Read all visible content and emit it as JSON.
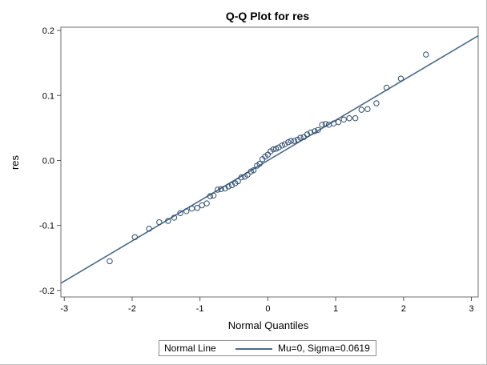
{
  "colors": {
    "line": "#4a6b8a",
    "marker": "#2f4d6f",
    "axis": "#555555",
    "text": "#000000",
    "background": "#ffffff"
  },
  "chart_data": {
    "type": "scatter",
    "title": "Q-Q Plot for res",
    "xlabel": "Normal Quantiles",
    "ylabel": "res",
    "xlim": [
      -3.05,
      3.1
    ],
    "ylim": [
      -0.21,
      0.205
    ],
    "xticks": [
      -3,
      -2,
      -1,
      0,
      1,
      2,
      3
    ],
    "yticks": [
      -0.2,
      -0.1,
      0.0,
      0.1,
      0.2
    ],
    "xtick_labels": [
      "-3",
      "-2",
      "-1",
      "0",
      "1",
      "2",
      "3"
    ],
    "ytick_labels": [
      "-0.2",
      "-0.1",
      "0.0",
      "0.1",
      "0.2"
    ],
    "grid": false,
    "legend_position": "bottom",
    "reference_line": {
      "mu": 0,
      "sigma": 0.0619
    },
    "legend": {
      "title": "Normal Line",
      "entry": "Mu=0, Sigma=0.0619"
    },
    "points": [
      {
        "x": -2.33,
        "y": -0.155
      },
      {
        "x": -1.96,
        "y": -0.118
      },
      {
        "x": -1.75,
        "y": -0.105
      },
      {
        "x": -1.6,
        "y": -0.095
      },
      {
        "x": -1.47,
        "y": -0.093
      },
      {
        "x": -1.38,
        "y": -0.088
      },
      {
        "x": -1.29,
        "y": -0.081
      },
      {
        "x": -1.2,
        "y": -0.078
      },
      {
        "x": -1.12,
        "y": -0.074
      },
      {
        "x": -1.04,
        "y": -0.073
      },
      {
        "x": -0.97,
        "y": -0.069
      },
      {
        "x": -0.9,
        "y": -0.066
      },
      {
        "x": -0.85,
        "y": -0.055
      },
      {
        "x": -0.8,
        "y": -0.054
      },
      {
        "x": -0.74,
        "y": -0.045
      },
      {
        "x": -0.69,
        "y": -0.044
      },
      {
        "x": -0.63,
        "y": -0.043
      },
      {
        "x": -0.58,
        "y": -0.04
      },
      {
        "x": -0.53,
        "y": -0.038
      },
      {
        "x": -0.48,
        "y": -0.035
      },
      {
        "x": -0.44,
        "y": -0.032
      },
      {
        "x": -0.39,
        "y": -0.026
      },
      {
        "x": -0.34,
        "y": -0.025
      },
      {
        "x": -0.3,
        "y": -0.022
      },
      {
        "x": -0.25,
        "y": -0.017
      },
      {
        "x": -0.21,
        "y": -0.015
      },
      {
        "x": -0.16,
        "y": -0.008
      },
      {
        "x": -0.12,
        "y": -0.005
      },
      {
        "x": -0.08,
        "y": 0.002
      },
      {
        "x": -0.04,
        "y": 0.006
      },
      {
        "x": 0.0,
        "y": 0.009
      },
      {
        "x": 0.04,
        "y": 0.014
      },
      {
        "x": 0.08,
        "y": 0.017
      },
      {
        "x": 0.12,
        "y": 0.018
      },
      {
        "x": 0.16,
        "y": 0.02
      },
      {
        "x": 0.21,
        "y": 0.023
      },
      {
        "x": 0.25,
        "y": 0.025
      },
      {
        "x": 0.3,
        "y": 0.028
      },
      {
        "x": 0.34,
        "y": 0.03
      },
      {
        "x": 0.39,
        "y": 0.03
      },
      {
        "x": 0.44,
        "y": 0.032
      },
      {
        "x": 0.48,
        "y": 0.035
      },
      {
        "x": 0.53,
        "y": 0.036
      },
      {
        "x": 0.58,
        "y": 0.04
      },
      {
        "x": 0.63,
        "y": 0.043
      },
      {
        "x": 0.69,
        "y": 0.045
      },
      {
        "x": 0.74,
        "y": 0.047
      },
      {
        "x": 0.8,
        "y": 0.055
      },
      {
        "x": 0.85,
        "y": 0.056
      },
      {
        "x": 0.9,
        "y": 0.055
      },
      {
        "x": 0.97,
        "y": 0.057
      },
      {
        "x": 1.04,
        "y": 0.059
      },
      {
        "x": 1.12,
        "y": 0.063
      },
      {
        "x": 1.2,
        "y": 0.065
      },
      {
        "x": 1.29,
        "y": 0.065
      },
      {
        "x": 1.38,
        "y": 0.078
      },
      {
        "x": 1.47,
        "y": 0.079
      },
      {
        "x": 1.6,
        "y": 0.088
      },
      {
        "x": 1.75,
        "y": 0.112
      },
      {
        "x": 1.96,
        "y": 0.126
      },
      {
        "x": 2.33,
        "y": 0.163
      }
    ]
  }
}
